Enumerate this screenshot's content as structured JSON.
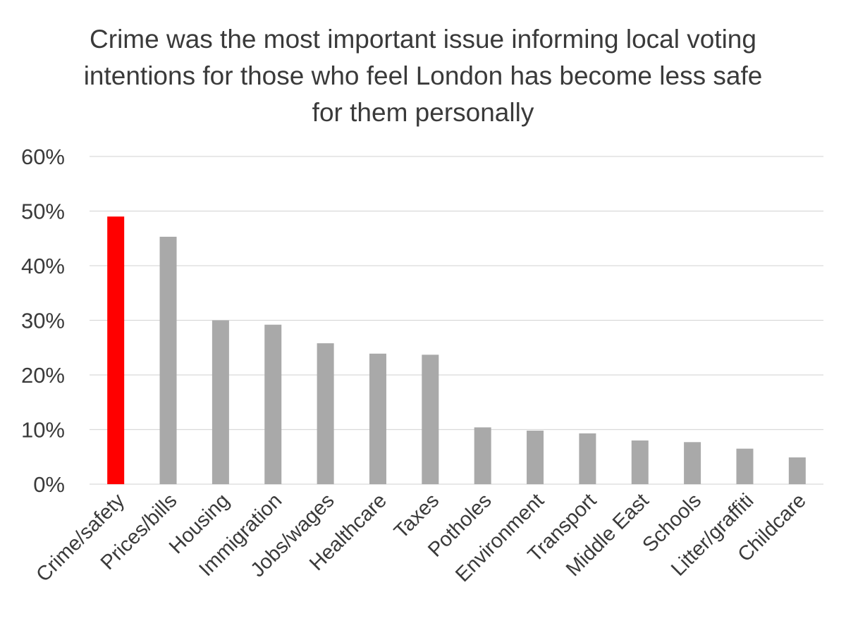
{
  "chart_data": {
    "type": "bar",
    "title": "Crime was the most important issue informing local voting intentions for those who feel London has become less safe for them personally",
    "xlabel": "",
    "ylabel": "",
    "ylim": [
      0,
      60
    ],
    "y_ticks": [
      "0%",
      "10%",
      "20%",
      "30%",
      "40%",
      "50%",
      "60%"
    ],
    "y_tick_values": [
      0,
      10,
      20,
      30,
      40,
      50,
      60
    ],
    "grid": true,
    "legend": false,
    "categories": [
      "Crime/safety",
      "Prices/bills",
      "Housing",
      "Immigration",
      "Jobs/wages",
      "Healthcare",
      "Taxes",
      "Potholes",
      "Environment",
      "Transport",
      "Middle East",
      "Schools",
      "Litter/graffiti",
      "Childcare"
    ],
    "values": [
      49,
      45.3,
      30,
      29.2,
      25.8,
      23.9,
      23.7,
      10.4,
      9.8,
      9.3,
      8,
      7.7,
      6.5,
      4.9
    ],
    "colors": {
      "highlight": "#ff0000",
      "default": "#a9a9a9"
    },
    "highlight_index": 0
  }
}
